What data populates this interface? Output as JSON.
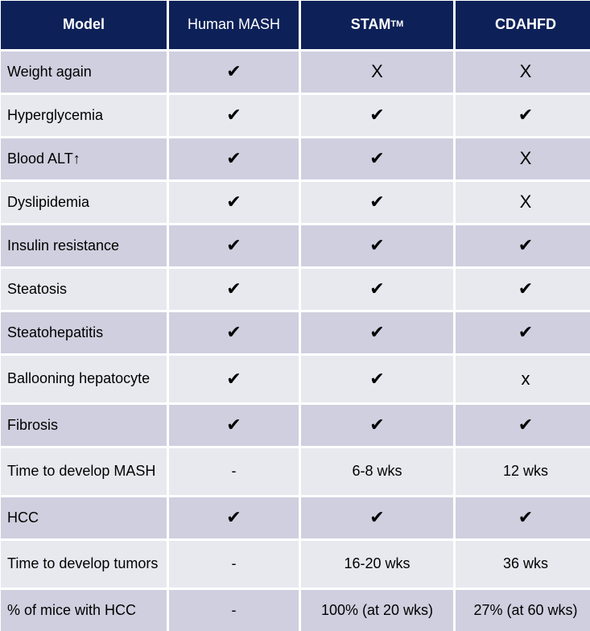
{
  "header": {
    "model": "Model",
    "human": "Human  MASH",
    "stam": "STAM",
    "stam_tm": "TM",
    "cdahfd": "CDAHFD"
  },
  "rows": [
    {
      "feature": "Weight again",
      "human": "✔",
      "stam": "X",
      "cdahfd": "X"
    },
    {
      "feature": "Hyperglycemia",
      "human": "✔",
      "stam": "✔",
      "cdahfd": "✔"
    },
    {
      "feature": "Blood ALT↑",
      "human": "✔",
      "stam": "✔",
      "cdahfd": "X"
    },
    {
      "feature": "Dyslipidemia",
      "human": "✔",
      "stam": "✔",
      "cdahfd": "X"
    },
    {
      "feature": "Insulin resistance",
      "human": "✔",
      "stam": "✔",
      "cdahfd": "✔"
    },
    {
      "feature": "Steatosis",
      "human": "✔",
      "stam": "✔",
      "cdahfd": "✔"
    },
    {
      "feature": "Steatohepatitis",
      "human": "✔",
      "stam": "✔",
      "cdahfd": "✔"
    },
    {
      "feature": "Ballooning hepatocyte",
      "human": "✔",
      "stam": "✔",
      "cdahfd": "x"
    },
    {
      "feature": "Fibrosis",
      "human": "✔",
      "stam": "✔",
      "cdahfd": "✔"
    },
    {
      "feature": "Time to develop MASH",
      "human": "-",
      "stam": "6-8  wks",
      "cdahfd": "12 wks"
    },
    {
      "feature": "HCC",
      "human": "✔",
      "stam": "✔",
      "cdahfd": "✔"
    },
    {
      "feature": "Time to develop tumors",
      "human": "-",
      "stam": "16-20 wks",
      "cdahfd": "36 wks"
    },
    {
      "feature": "% of mice with HCC",
      "human": "-",
      "stam": "100%  (at 20 wks)",
      "cdahfd": "27% (at 60 wks)"
    }
  ],
  "colors": {
    "header_bg": "#0d2158",
    "row_dark": "#cfcfdf",
    "row_light": "#e8e9ef"
  }
}
